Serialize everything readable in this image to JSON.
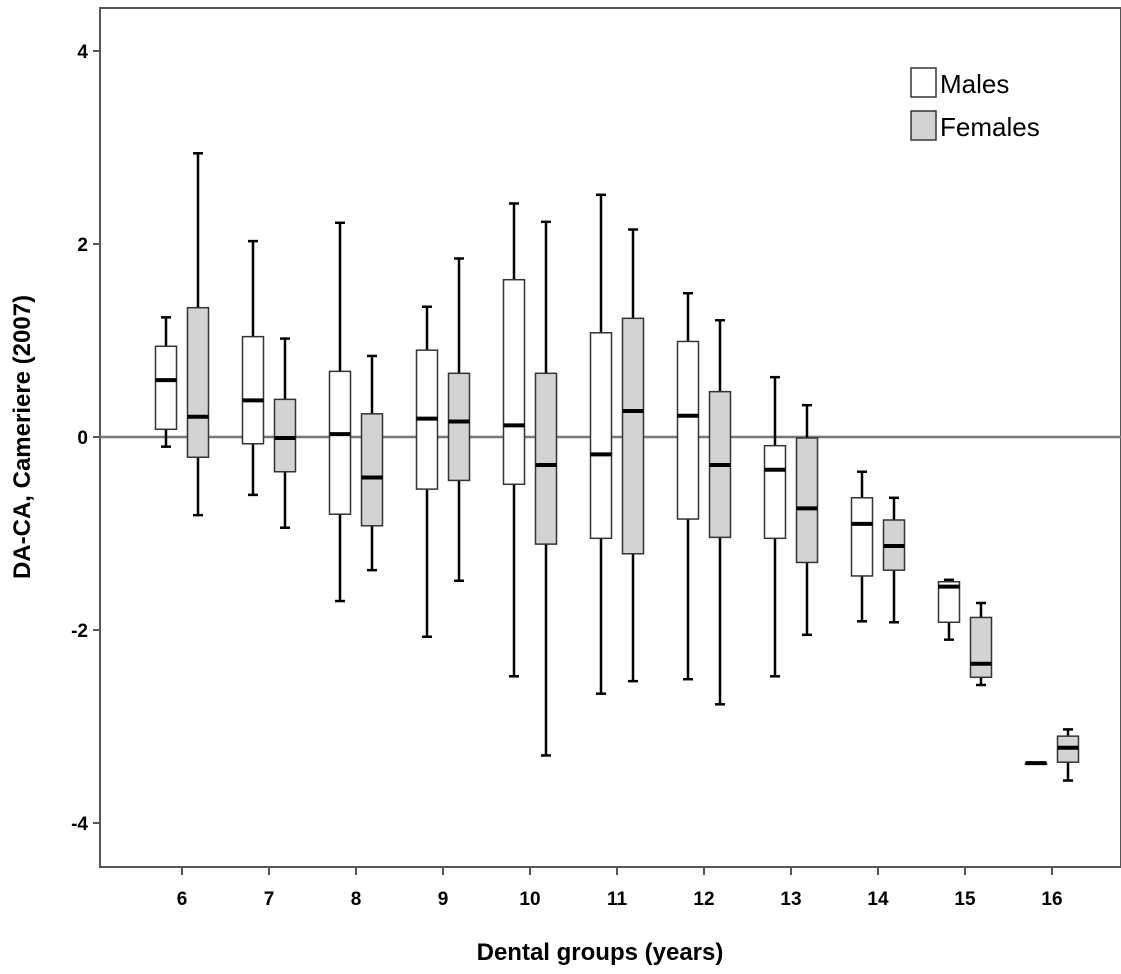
{
  "chart_data": {
    "type": "box",
    "xlabel": "Dental groups (years)",
    "ylabel": "DA-CA, Cameriere (2007)",
    "ylim": [
      -4.45,
      4.45
    ],
    "yticks": [
      4,
      2,
      0,
      -2,
      -4
    ],
    "ytick_labels": [
      "4",
      "2",
      "0",
      "-2",
      "-4"
    ],
    "reference_line": 0,
    "grid": false,
    "legend_position": "top-right",
    "categories": [
      "6",
      "7",
      "8",
      "9",
      "10",
      "11",
      "12",
      "13",
      "14",
      "15",
      "16"
    ],
    "series": [
      {
        "name": "Males",
        "color": "#ffffff",
        "boxes": [
          {
            "min": -0.1,
            "q1": 0.08,
            "median": 0.59,
            "q3": 0.94,
            "max": 1.24
          },
          {
            "min": -0.6,
            "q1": -0.07,
            "median": 0.38,
            "q3": 1.04,
            "max": 2.03
          },
          {
            "min": -1.7,
            "q1": -0.8,
            "median": 0.03,
            "q3": 0.68,
            "max": 2.22
          },
          {
            "min": -2.07,
            "q1": -0.54,
            "median": 0.19,
            "q3": 0.9,
            "max": 1.35
          },
          {
            "min": -2.48,
            "q1": -0.49,
            "median": 0.12,
            "q3": 1.63,
            "max": 2.42
          },
          {
            "min": -2.66,
            "q1": -1.05,
            "median": -0.18,
            "q3": 1.08,
            "max": 2.51
          },
          {
            "min": -2.51,
            "q1": -0.85,
            "median": 0.22,
            "q3": 0.99,
            "max": 1.49
          },
          {
            "min": -2.48,
            "q1": -1.05,
            "median": -0.34,
            "q3": -0.09,
            "max": 0.62
          },
          {
            "min": -1.91,
            "q1": -1.44,
            "median": -0.9,
            "q3": -0.63,
            "max": -0.36
          },
          {
            "min": -2.1,
            "q1": -1.92,
            "median": -1.55,
            "q3": -1.5,
            "max": -1.48
          },
          {
            "min": -3.38,
            "q1": -3.38,
            "median": -3.38,
            "q3": -3.38,
            "max": -3.38
          }
        ]
      },
      {
        "name": "Females",
        "color": "#d3d3d3",
        "boxes": [
          {
            "min": -0.81,
            "q1": -0.21,
            "median": 0.21,
            "q3": 1.34,
            "max": 2.94
          },
          {
            "min": -0.94,
            "q1": -0.36,
            "median": -0.01,
            "q3": 0.39,
            "max": 1.02
          },
          {
            "min": -1.38,
            "q1": -0.92,
            "median": -0.42,
            "q3": 0.24,
            "max": 0.84
          },
          {
            "min": -1.49,
            "q1": -0.45,
            "median": 0.16,
            "q3": 0.66,
            "max": 1.85
          },
          {
            "min": -3.3,
            "q1": -1.11,
            "median": -0.29,
            "q3": 0.66,
            "max": 2.23
          },
          {
            "min": -2.53,
            "q1": -1.21,
            "median": 0.27,
            "q3": 1.23,
            "max": 2.15
          },
          {
            "min": -2.77,
            "q1": -1.04,
            "median": -0.29,
            "q3": 0.47,
            "max": 1.21
          },
          {
            "min": -2.05,
            "q1": -1.3,
            "median": -0.74,
            "q3": -0.01,
            "max": 0.33
          },
          {
            "min": -1.92,
            "q1": -1.38,
            "median": -1.13,
            "q3": -0.86,
            "max": -0.63
          },
          {
            "min": -2.57,
            "q1": -2.49,
            "median": -2.35,
            "q3": -1.87,
            "max": -1.72
          },
          {
            "min": -3.56,
            "q1": -3.37,
            "median": -3.22,
            "q3": -3.1,
            "max": -3.03
          }
        ]
      }
    ]
  }
}
